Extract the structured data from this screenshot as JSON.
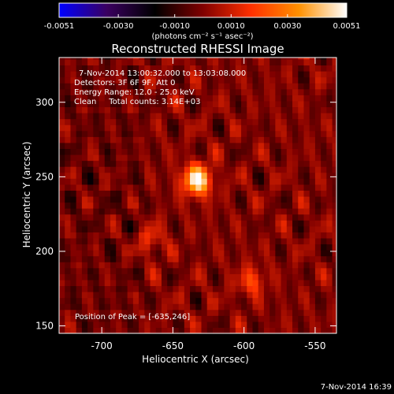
{
  "chart_data": {
    "type": "heatmap",
    "title": "Reconstructed RHESSI Image",
    "xlabel": "Heliocentric X (arcsec)",
    "ylabel": "Heliocentric Y (arcsec)",
    "xlim": [
      -730,
      -535
    ],
    "ylim": [
      145,
      330
    ],
    "x_ticks": [
      "-700",
      "-650",
      "-600",
      "-550"
    ],
    "x_tick_values": [
      -700,
      -650,
      -600,
      -550
    ],
    "y_ticks": [
      "150",
      "200",
      "250",
      "300"
    ],
    "y_tick_values": [
      150,
      200,
      250,
      300
    ],
    "annotations": [
      "7-Nov-2014 13:00:32.000 to 13:03:08.000",
      "Detectors: 3F 6F 9F, Att 0",
      "Energy Range: 12.0 - 25.0 keV",
      "Clean     Total counts: 3.14E+03",
      "Position of Peak = [-635,246]"
    ],
    "peak": {
      "x": -635,
      "y": 246
    },
    "colorbar": {
      "ticks": [
        "-0.0051",
        "-0.0030",
        "-0.0010",
        "0.0010",
        "0.0030",
        "0.0051"
      ],
      "tick_values": [
        -0.0051,
        -0.003,
        -0.001,
        0.001,
        0.003,
        0.0051
      ],
      "range": [
        -0.0051,
        0.0051
      ],
      "unit_label": "(photons cm⁻² s⁻¹ asec⁻²)",
      "colors": [
        "#0000ff",
        "#3a0060",
        "#000000",
        "#800000",
        "#ff3000",
        "#ff9000",
        "#ffffff"
      ]
    },
    "sources": [
      {
        "x": -635,
        "y": 246,
        "value": 0.0051
      },
      {
        "x": -597,
        "y": 178,
        "value": 0.0018
      },
      {
        "x": -668,
        "y": 205,
        "value": 0.0014
      }
    ],
    "background": "#000000"
  },
  "footer": {
    "timestamp": "7-Nov-2014 16:39"
  }
}
